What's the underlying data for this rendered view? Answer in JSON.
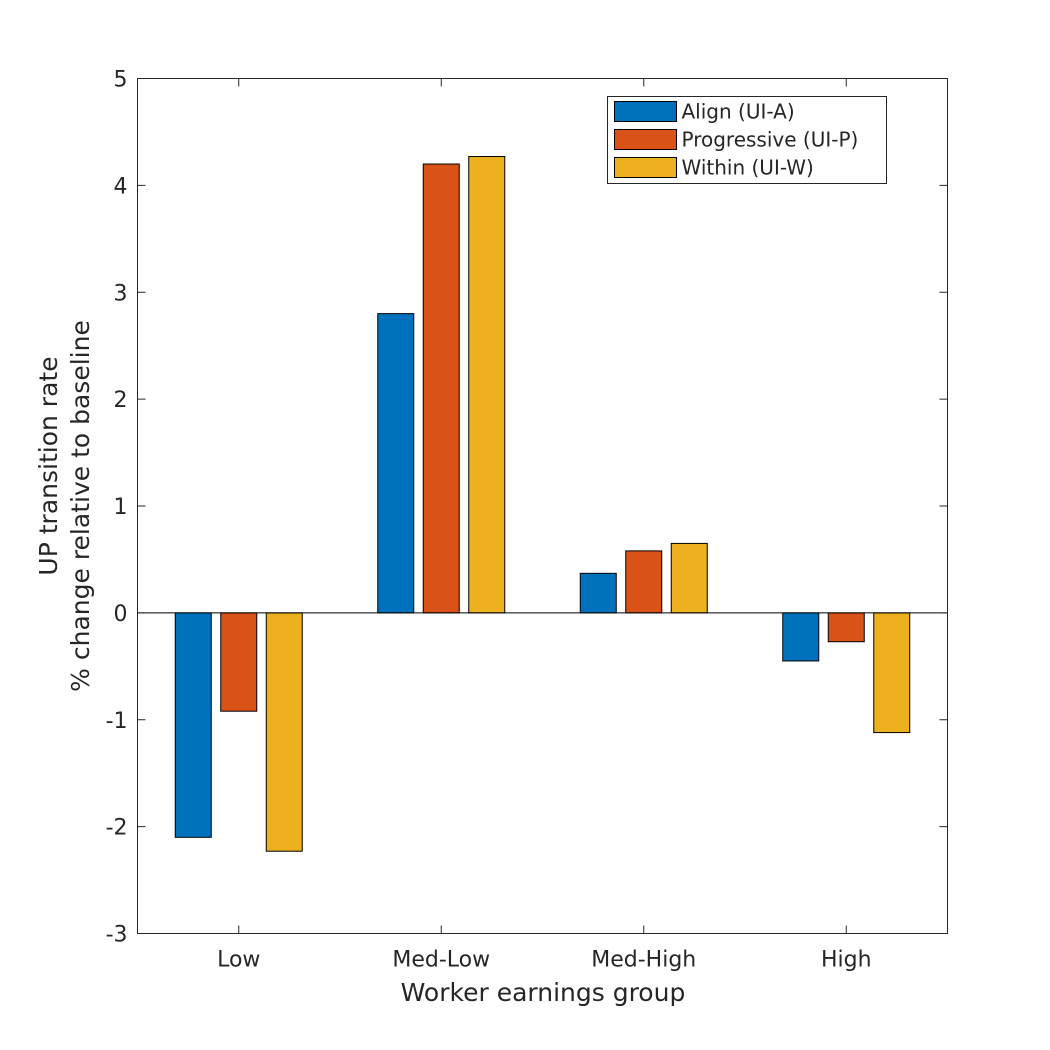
{
  "chart_data": {
    "type": "bar",
    "categories": [
      "Low",
      "Med-Low",
      "Med-High",
      "High"
    ],
    "series": [
      {
        "name": "Align (UI-A)",
        "color": "#0072BD",
        "values": [
          -2.1,
          2.8,
          0.37,
          -0.45
        ]
      },
      {
        "name": "Progressive (UI-P)",
        "color": "#D95319",
        "values": [
          -0.92,
          4.2,
          0.58,
          -0.27
        ]
      },
      {
        "name": "Within (UI-W)",
        "color": "#EDB120",
        "values": [
          -2.23,
          4.27,
          0.65,
          -1.12
        ]
      }
    ],
    "title": "",
    "xlabel": "Worker earnings group",
    "ylabel_lines": [
      "UP transition rate",
      "% change relative to baseline"
    ],
    "ylim": [
      -3,
      5
    ],
    "yticks": [
      -3,
      -2,
      -1,
      0,
      1,
      2,
      3,
      4,
      5
    ],
    "grid": false,
    "legend_position": "top-right"
  }
}
